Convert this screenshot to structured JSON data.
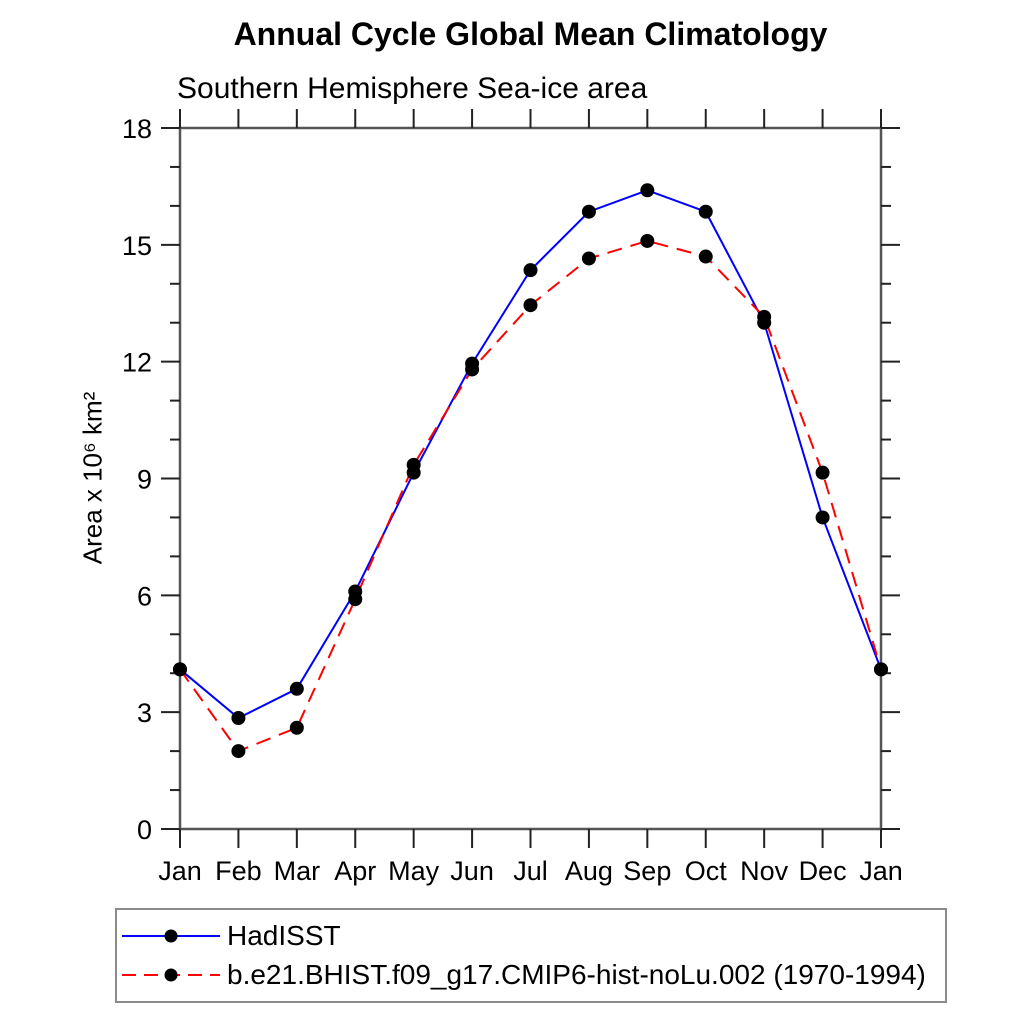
{
  "page": {
    "background": "#ffffff",
    "axis_color": "#555555",
    "tick_color": "#222222",
    "legend_border_color": "#8a8a8a"
  },
  "chart_data": {
    "type": "line",
    "title": "Annual Cycle Global Mean Climatology",
    "subtitle": "Southern Hemisphere Sea-ice area",
    "ylabel": "Area x 10⁶ km²",
    "xlabel": "",
    "categories": [
      "Jan",
      "Feb",
      "Mar",
      "Apr",
      "May",
      "Jun",
      "Jul",
      "Aug",
      "Sep",
      "Oct",
      "Nov",
      "Dec",
      "Jan"
    ],
    "ylim": [
      0,
      18
    ],
    "ytick_major_interval": 3,
    "ytick_minor_interval": 1,
    "ytick_major_labels": [
      "0",
      "3",
      "6",
      "9",
      "12",
      "15",
      "18"
    ],
    "grid": false,
    "legend_position": "bottom-left",
    "marker": "filled-circle",
    "marker_color": "#000000",
    "series": [
      {
        "name": "HadISST",
        "color": "#0000ff",
        "line_style": "solid",
        "values": [
          4.1,
          2.85,
          3.6,
          6.1,
          9.15,
          11.95,
          14.35,
          15.85,
          16.4,
          15.85,
          13.0,
          8.0,
          4.1
        ]
      },
      {
        "name": "b.e21.BHIST.f09_g17.CMIP6-hist-noLu.002 (1970-1994)",
        "color": "#ff0000",
        "line_style": "dashed",
        "values": [
          4.1,
          2.0,
          2.6,
          5.9,
          9.35,
          11.8,
          13.45,
          14.65,
          15.1,
          14.7,
          13.15,
          9.15,
          4.1
        ]
      }
    ]
  }
}
